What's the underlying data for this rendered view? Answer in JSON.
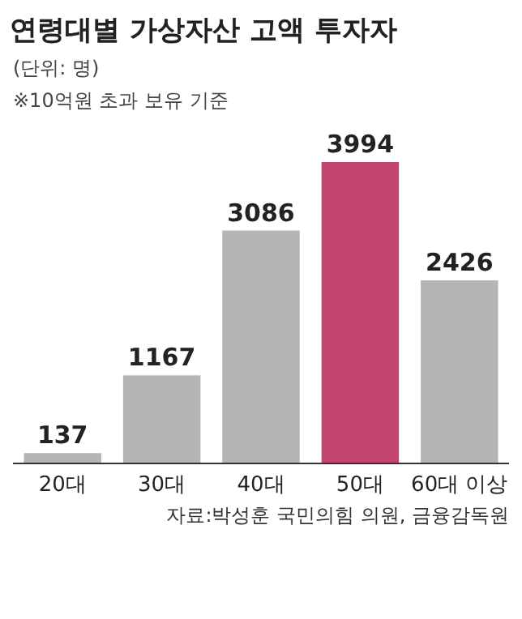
{
  "chart_data": {
    "type": "bar",
    "title": "연령대별 가상자산 고액 투자자",
    "subtitle": "(단위: 명)",
    "annotations": [
      "※10억원 초과 보유 기준",
      "자료:박성훈 국민의힘 의원, 금융감독원"
    ],
    "categories": [
      "20대",
      "30대",
      "40대",
      "50대",
      "60대 이상"
    ],
    "values": [
      137,
      1167,
      3086,
      3994,
      2426
    ],
    "colors": [
      "#b5b5b5",
      "#b5b5b5",
      "#b5b5b5",
      "#c4466f",
      "#b5b5b5"
    ],
    "data_labels": true
  }
}
